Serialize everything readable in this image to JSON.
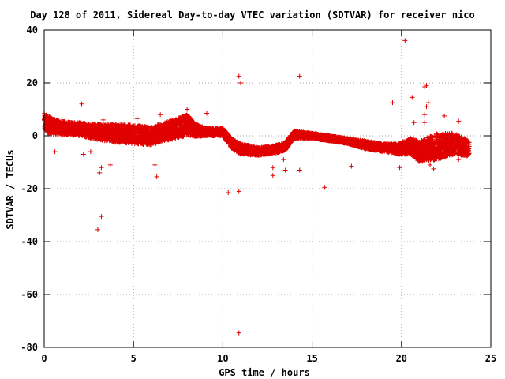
{
  "chart_data": {
    "type": "scatter",
    "title": "Day 128 of 2011, Sidereal Day-to-day VTEC variation (SDTVAR) for receiver nico",
    "xlabel": "GPS time / hours",
    "ylabel": "SDTVAR / TECUs",
    "xlim": [
      0,
      25
    ],
    "ylim": [
      -80,
      40
    ],
    "xticks": [
      "0",
      "5",
      "10",
      "15",
      "20",
      "25"
    ],
    "yticks": [
      "40",
      "20",
      "0",
      "-20",
      "-40",
      "-60",
      "-80"
    ],
    "xtick_values": [
      0,
      5,
      10,
      15,
      20,
      25
    ],
    "ytick_values": [
      40,
      20,
      0,
      -20,
      -40,
      -60,
      -80
    ],
    "grid": true,
    "marker": "+",
    "color": "#e00000",
    "dense_band": [
      [
        0.0,
        5.0,
        7
      ],
      [
        0.5,
        3.5,
        6
      ],
      [
        1.0,
        3.0,
        5
      ],
      [
        2.0,
        2.5,
        5
      ],
      [
        3.0,
        1.5,
        6
      ],
      [
        4.0,
        1.0,
        7
      ],
      [
        5.0,
        0.5,
        7
      ],
      [
        6.0,
        0.0,
        7
      ],
      [
        7.0,
        2.0,
        7
      ],
      [
        8.0,
        4.0,
        8
      ],
      [
        8.5,
        2.0,
        5
      ],
      [
        9.0,
        1.5,
        3
      ],
      [
        10.0,
        1.5,
        3
      ],
      [
        10.5,
        -3.0,
        4
      ],
      [
        11.0,
        -5.0,
        4
      ],
      [
        12.0,
        -6.0,
        3
      ],
      [
        13.0,
        -5.0,
        3
      ],
      [
        13.5,
        -4.0,
        3
      ],
      [
        14.0,
        0.5,
        3
      ],
      [
        15.0,
        0.0,
        2
      ],
      [
        16.0,
        -1.0,
        2
      ],
      [
        17.0,
        -2.0,
        2
      ],
      [
        18.0,
        -3.5,
        3
      ],
      [
        19.0,
        -4.5,
        3
      ],
      [
        19.8,
        -5.0,
        4
      ],
      [
        20.5,
        -4.0,
        6
      ],
      [
        21.0,
        -6.0,
        8
      ],
      [
        22.0,
        -4.0,
        10
      ],
      [
        23.0,
        -3.0,
        8
      ],
      [
        23.8,
        -5.0,
        6
      ]
    ],
    "outliers": [
      [
        0.6,
        -6.0
      ],
      [
        2.1,
        12.0
      ],
      [
        2.2,
        -7.0
      ],
      [
        2.6,
        -6.0
      ],
      [
        3.0,
        -35.5
      ],
      [
        3.2,
        -30.5
      ],
      [
        3.2,
        -12.0
      ],
      [
        3.1,
        -14.0
      ],
      [
        3.3,
        6.0
      ],
      [
        3.5,
        4.0
      ],
      [
        3.7,
        -11.0
      ],
      [
        5.2,
        6.5
      ],
      [
        6.2,
        -11.0
      ],
      [
        6.3,
        -15.5
      ],
      [
        6.5,
        8.0
      ],
      [
        8.0,
        10.0
      ],
      [
        9.1,
        8.5
      ],
      [
        10.3,
        -21.5
      ],
      [
        10.9,
        22.5
      ],
      [
        11.0,
        20.0
      ],
      [
        10.9,
        -21.0
      ],
      [
        10.9,
        -74.5
      ],
      [
        12.8,
        -15.0
      ],
      [
        12.8,
        -12.0
      ],
      [
        13.4,
        -9.0
      ],
      [
        13.5,
        -13.0
      ],
      [
        14.3,
        22.5
      ],
      [
        14.3,
        -13.0
      ],
      [
        15.7,
        -19.5
      ],
      [
        17.2,
        -11.5
      ],
      [
        19.5,
        12.5
      ],
      [
        19.9,
        -12.0
      ],
      [
        20.2,
        36.0
      ],
      [
        20.6,
        14.5
      ],
      [
        20.7,
        5.0
      ],
      [
        21.3,
        18.5
      ],
      [
        21.4,
        19.0
      ],
      [
        21.4,
        11.0
      ],
      [
        21.5,
        12.5
      ],
      [
        21.3,
        8.0
      ],
      [
        21.3,
        5.0
      ],
      [
        21.6,
        -11.0
      ],
      [
        21.8,
        -12.5
      ],
      [
        22.4,
        7.5
      ],
      [
        23.2,
        5.5
      ],
      [
        23.2,
        -9.0
      ],
      [
        23.8,
        -4.0
      ]
    ]
  }
}
